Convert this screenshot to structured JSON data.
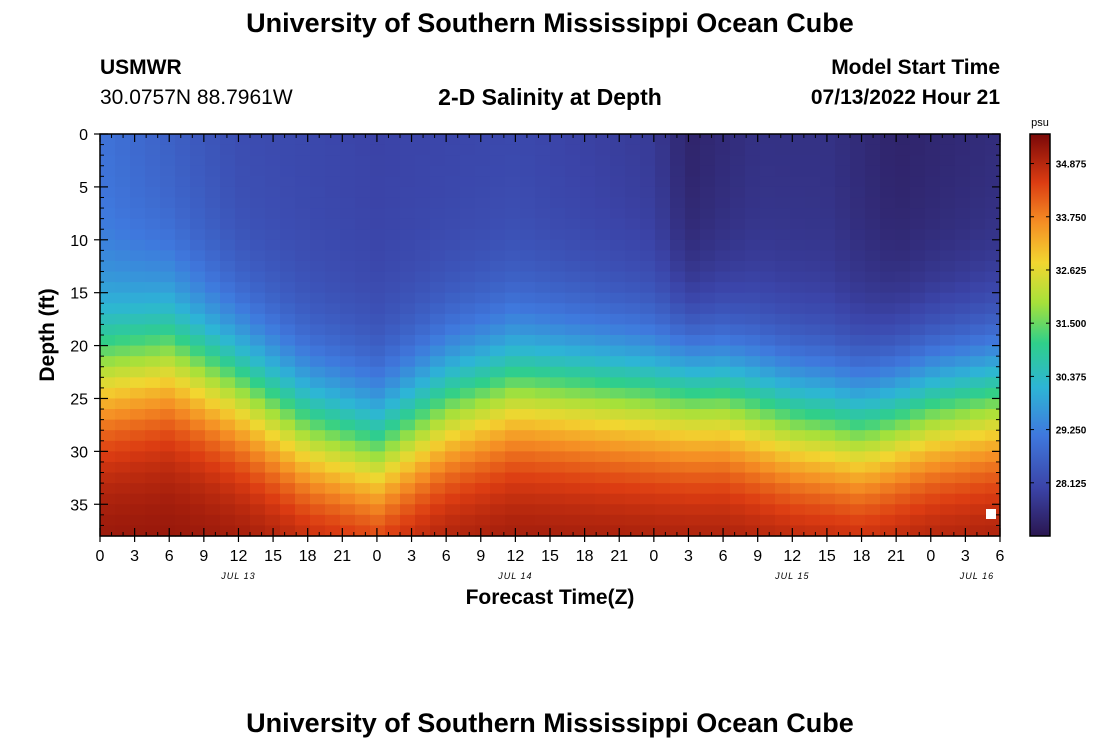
{
  "header": {
    "title": "University of Southern Mississippi Ocean Cube",
    "station_name": "USMWR",
    "station_coords": "30.0757N  88.7961W",
    "plot_title": "2-D Salinity at Depth",
    "model_label": "Model Start Time",
    "model_time": "07/13/2022 Hour 21"
  },
  "footer": {
    "title": "University of Southern Mississippi Ocean Cube"
  },
  "chart_data": {
    "type": "heatmap",
    "title": "2-D Salinity at Depth",
    "xlabel": "Forecast Time(Z)",
    "ylabel": "Depth (ft)",
    "x_start_hour": 0,
    "x_end_hour": 78,
    "x_ticks": [
      {
        "hour": 0,
        "label": "0"
      },
      {
        "hour": 3,
        "label": "3"
      },
      {
        "hour": 6,
        "label": "6"
      },
      {
        "hour": 9,
        "label": "9"
      },
      {
        "hour": 12,
        "label": "12"
      },
      {
        "hour": 15,
        "label": "15"
      },
      {
        "hour": 18,
        "label": "18"
      },
      {
        "hour": 21,
        "label": "21"
      },
      {
        "hour": 24,
        "label": "0"
      },
      {
        "hour": 27,
        "label": "3"
      },
      {
        "hour": 30,
        "label": "6"
      },
      {
        "hour": 33,
        "label": "9"
      },
      {
        "hour": 36,
        "label": "12"
      },
      {
        "hour": 39,
        "label": "15"
      },
      {
        "hour": 42,
        "label": "18"
      },
      {
        "hour": 45,
        "label": "21"
      },
      {
        "hour": 48,
        "label": "0"
      },
      {
        "hour": 51,
        "label": "3"
      },
      {
        "hour": 54,
        "label": "6"
      },
      {
        "hour": 57,
        "label": "9"
      },
      {
        "hour": 60,
        "label": "12"
      },
      {
        "hour": 63,
        "label": "15"
      },
      {
        "hour": 66,
        "label": "18"
      },
      {
        "hour": 69,
        "label": "21"
      },
      {
        "hour": 72,
        "label": "0"
      },
      {
        "hour": 75,
        "label": "3"
      },
      {
        "hour": 78,
        "label": "6"
      }
    ],
    "date_labels": [
      {
        "hour": 12,
        "label": "JUL 13"
      },
      {
        "hour": 36,
        "label": "JUL 14"
      },
      {
        "hour": 60,
        "label": "JUL 15"
      },
      {
        "hour": 76,
        "label": "JUL 16"
      }
    ],
    "y_range": [
      0,
      38
    ],
    "y_ticks": [
      0,
      5,
      10,
      15,
      20,
      25,
      30,
      35
    ],
    "colorbar": {
      "unit": "psu",
      "min": 27.0,
      "max": 35.5,
      "ticks": [
        "34.875",
        "33.750",
        "32.625",
        "31.500",
        "30.375",
        "29.250",
        "28.125"
      ]
    },
    "halocline_depth_ft_by_hour": [
      {
        "hour": 0,
        "depth": 22.5
      },
      {
        "hour": 6,
        "depth": 21.0
      },
      {
        "hour": 12,
        "depth": 24.0
      },
      {
        "hour": 18,
        "depth": 28.0
      },
      {
        "hour": 24,
        "depth": 30.0
      },
      {
        "hour": 30,
        "depth": 26.0
      },
      {
        "hour": 36,
        "depth": 24.0
      },
      {
        "hour": 42,
        "depth": 24.5
      },
      {
        "hour": 48,
        "depth": 25.0
      },
      {
        "hour": 54,
        "depth": 25.0
      },
      {
        "hour": 60,
        "depth": 27.0
      },
      {
        "hour": 66,
        "depth": 28.0
      },
      {
        "hour": 72,
        "depth": 26.0
      },
      {
        "hour": 78,
        "depth": 25.0
      }
    ],
    "surface_salinity_psu_by_hour": [
      {
        "hour": 0,
        "value": 29.0
      },
      {
        "hour": 12,
        "value": 28.2
      },
      {
        "hour": 24,
        "value": 28.0
      },
      {
        "hour": 36,
        "value": 28.1
      },
      {
        "hour": 48,
        "value": 27.8
      },
      {
        "hour": 51,
        "value": 27.3
      },
      {
        "hour": 57,
        "value": 27.6
      },
      {
        "hour": 63,
        "value": 27.6
      },
      {
        "hour": 69,
        "value": 27.3
      },
      {
        "hour": 78,
        "value": 27.5
      }
    ],
    "bottom_salinity_psu": 35.3
  },
  "colors": {
    "background": "#ffffff",
    "axis": "#000000",
    "marker": "#ffffff"
  }
}
